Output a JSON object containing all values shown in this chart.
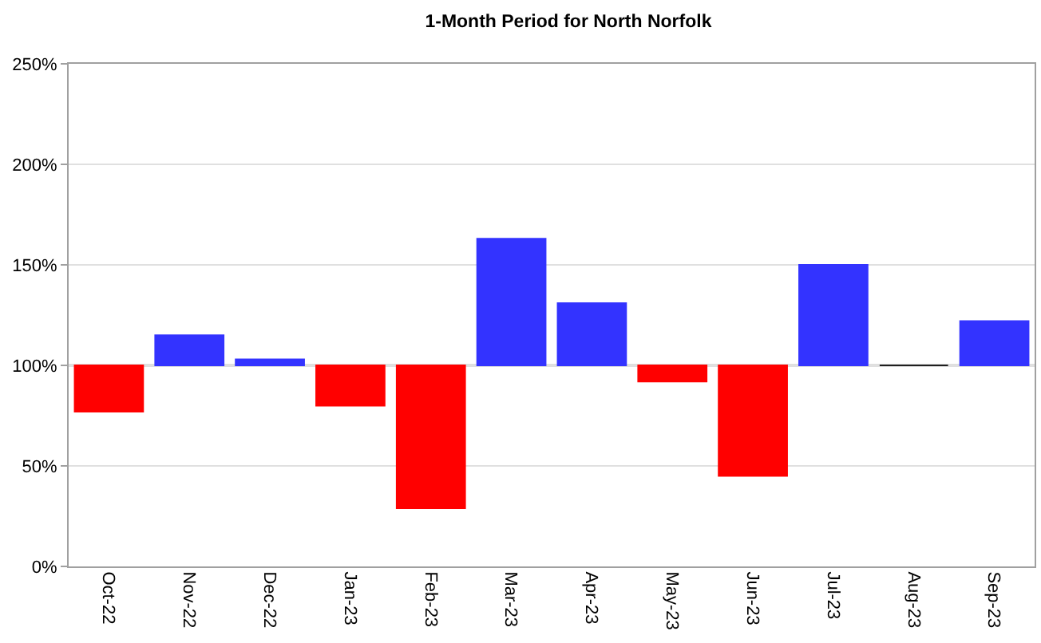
{
  "chart_data": {
    "type": "bar",
    "title": "1-Month Period for North Norfolk",
    "categories": [
      "Oct-22",
      "Nov-22",
      "Dec-22",
      "Jan-23",
      "Feb-23",
      "Mar-23",
      "Apr-23",
      "May-23",
      "Jun-23",
      "Jul-23",
      "Aug-23",
      "Sep-23"
    ],
    "base": [
      100,
      100,
      100,
      100,
      100,
      100,
      100,
      100,
      100,
      100,
      100,
      100
    ],
    "values": [
      -23,
      15,
      3,
      -20,
      -71,
      63,
      31,
      -8,
      -55,
      50,
      0,
      22
    ],
    "colors": [
      "#ff0000",
      "#3333ff",
      "#3333ff",
      "#ff0000",
      "#ff0000",
      "#3333ff",
      "#3333ff",
      "#ff0000",
      "#ff0000",
      "#3333ff",
      "#1f1f1f",
      "#3333ff"
    ],
    "ylim": [
      0,
      250
    ],
    "yticks": [
      {
        "value": 0,
        "label": "0%"
      },
      {
        "value": 50,
        "label": "50%"
      },
      {
        "value": 100,
        "label": "100%"
      },
      {
        "value": 150,
        "label": "150%"
      },
      {
        "value": 200,
        "label": "200%"
      },
      {
        "value": 250,
        "label": "250%"
      }
    ],
    "grid": "y",
    "ref_lines": [
      {
        "axis": "y",
        "value": 100,
        "color": "#808080"
      }
    ]
  }
}
